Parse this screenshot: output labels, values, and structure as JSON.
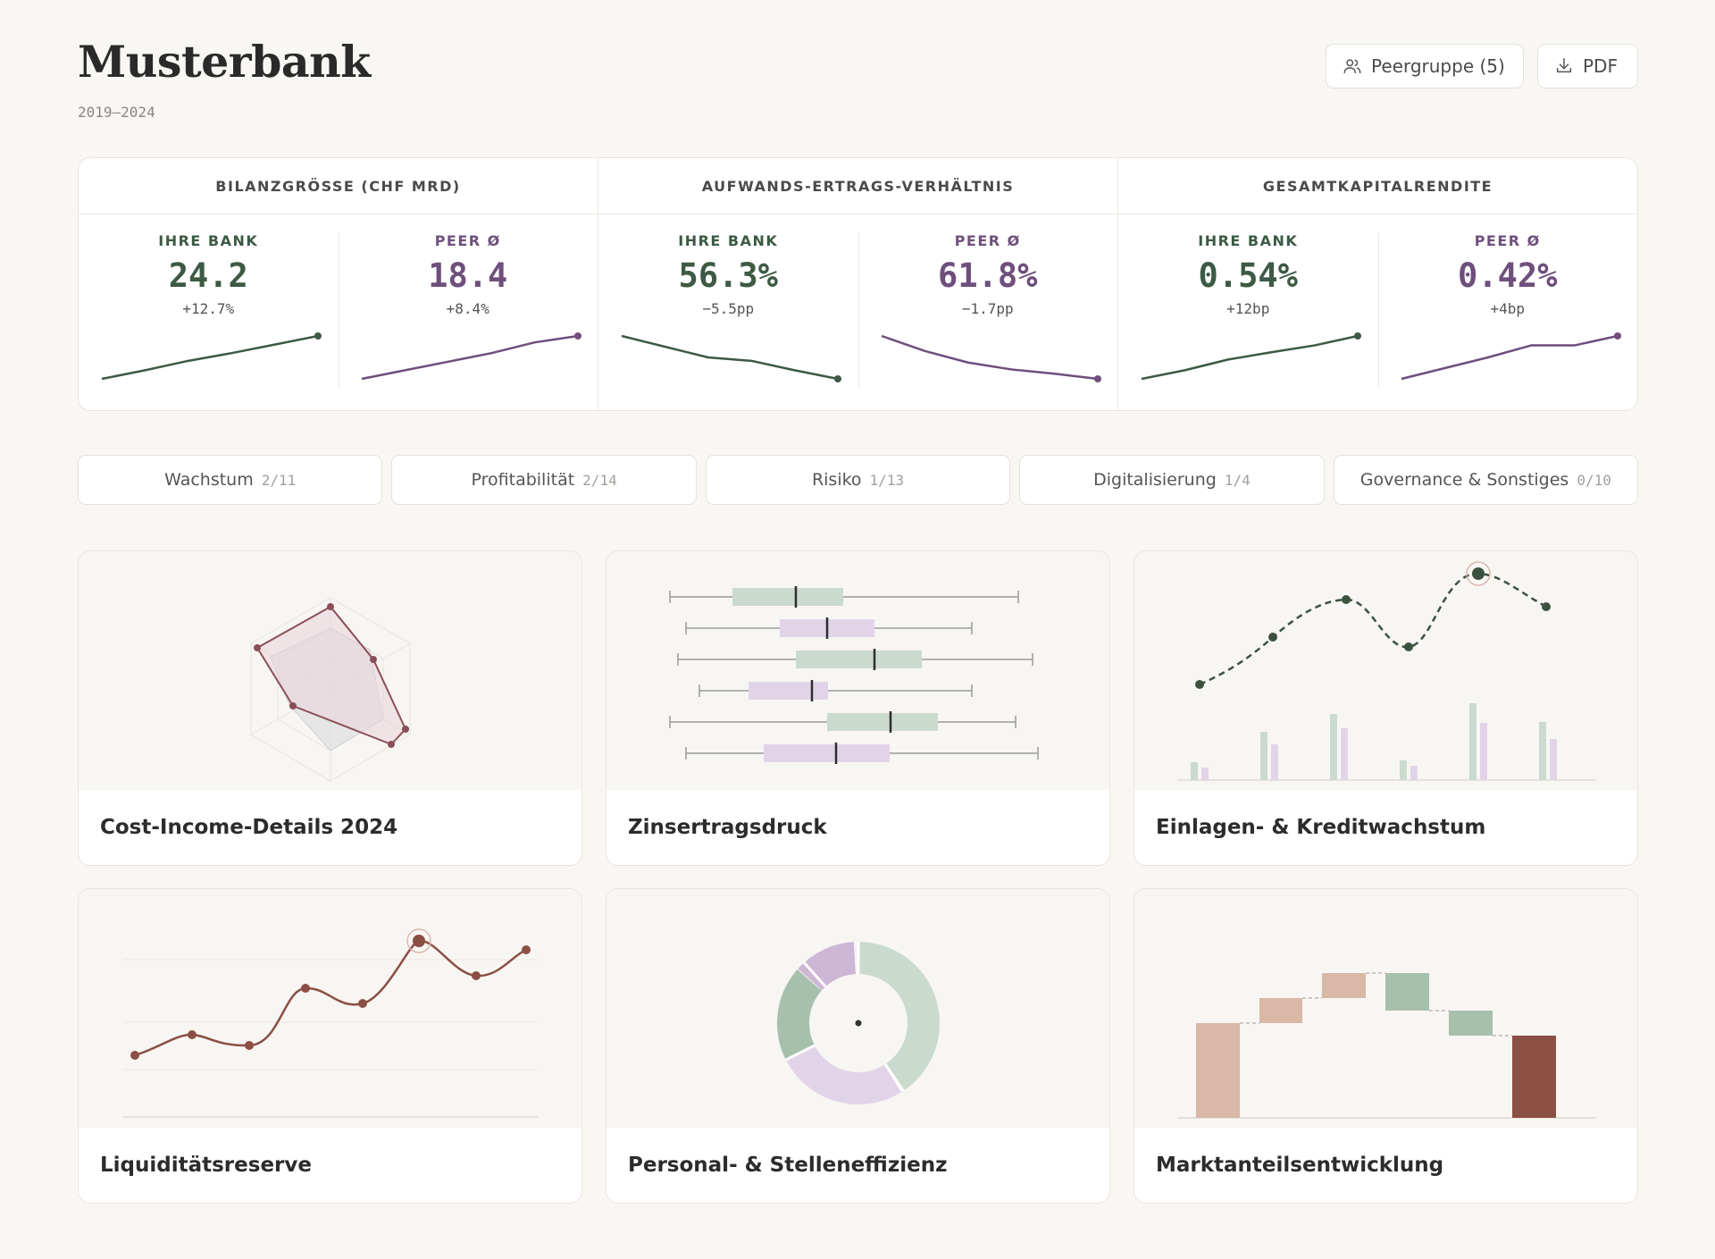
{
  "header": {
    "title": "Musterbank",
    "period": "2019–2024",
    "peer_button": "Peergruppe (5)",
    "pdf_button": "PDF"
  },
  "colors": {
    "bank": "#3c5a44",
    "peer": "#6e4f7c",
    "background": "#f9f7f4",
    "accent_red": "#8b4f43"
  },
  "icons": {
    "peer_button": "users-icon",
    "pdf_button": "download-icon"
  },
  "kpis": [
    {
      "title": "BILANZGRÖSSE (CHF MRD)",
      "bank": {
        "label": "IHRE BANK",
        "value": "24.2",
        "delta": "+12.7%",
        "trend": [
          0,
          0.2,
          0.42,
          0.6,
          0.8,
          1
        ]
      },
      "peer": {
        "label": "PEER Ø",
        "value": "18.4",
        "delta": "+8.4%",
        "trend": [
          0,
          0.2,
          0.4,
          0.6,
          0.85,
          1
        ]
      }
    },
    {
      "title": "AUFWANDS-ERTRAGS-VERHÄLTNIS",
      "bank": {
        "label": "IHRE BANK",
        "value": "56.3%",
        "delta": "−5.5pp",
        "trend": [
          1,
          0.75,
          0.5,
          0.42,
          0.2,
          0
        ]
      },
      "peer": {
        "label": "PEER Ø",
        "value": "61.8%",
        "delta": "−1.7pp",
        "trend": [
          1,
          0.65,
          0.38,
          0.22,
          0.12,
          0
        ]
      }
    },
    {
      "title": "GESAMTKAPITALRENDITE",
      "bank": {
        "label": "IHRE BANK",
        "value": "0.54%",
        "delta": "+12bp",
        "trend": [
          0,
          0.2,
          0.45,
          0.62,
          0.78,
          1
        ]
      },
      "peer": {
        "label": "PEER Ø",
        "value": "0.42%",
        "delta": "+4bp",
        "trend": [
          0,
          0.25,
          0.5,
          0.78,
          0.78,
          1
        ]
      }
    }
  ],
  "tabs": [
    {
      "label": "Wachstum",
      "count": "2/11"
    },
    {
      "label": "Profitabilität",
      "count": "2/14"
    },
    {
      "label": "Risiko",
      "count": "1/13"
    },
    {
      "label": "Digitalisierung",
      "count": "1/4"
    },
    {
      "label": "Governance & Sonstiges",
      "count": "0/10"
    }
  ],
  "cards": [
    {
      "title": "Cost-Income-Details 2024",
      "viz": "radar"
    },
    {
      "title": "Zinsertragsdruck",
      "viz": "boxplot"
    },
    {
      "title": "Einlagen- & Kreditwachstum",
      "viz": "line-bars"
    },
    {
      "title": "Liquiditätsreserve",
      "viz": "line"
    },
    {
      "title": "Personal- & Stelleneffizienz",
      "viz": "donut"
    },
    {
      "title": "Marktanteilsentwicklung",
      "viz": "waterfall"
    }
  ]
}
